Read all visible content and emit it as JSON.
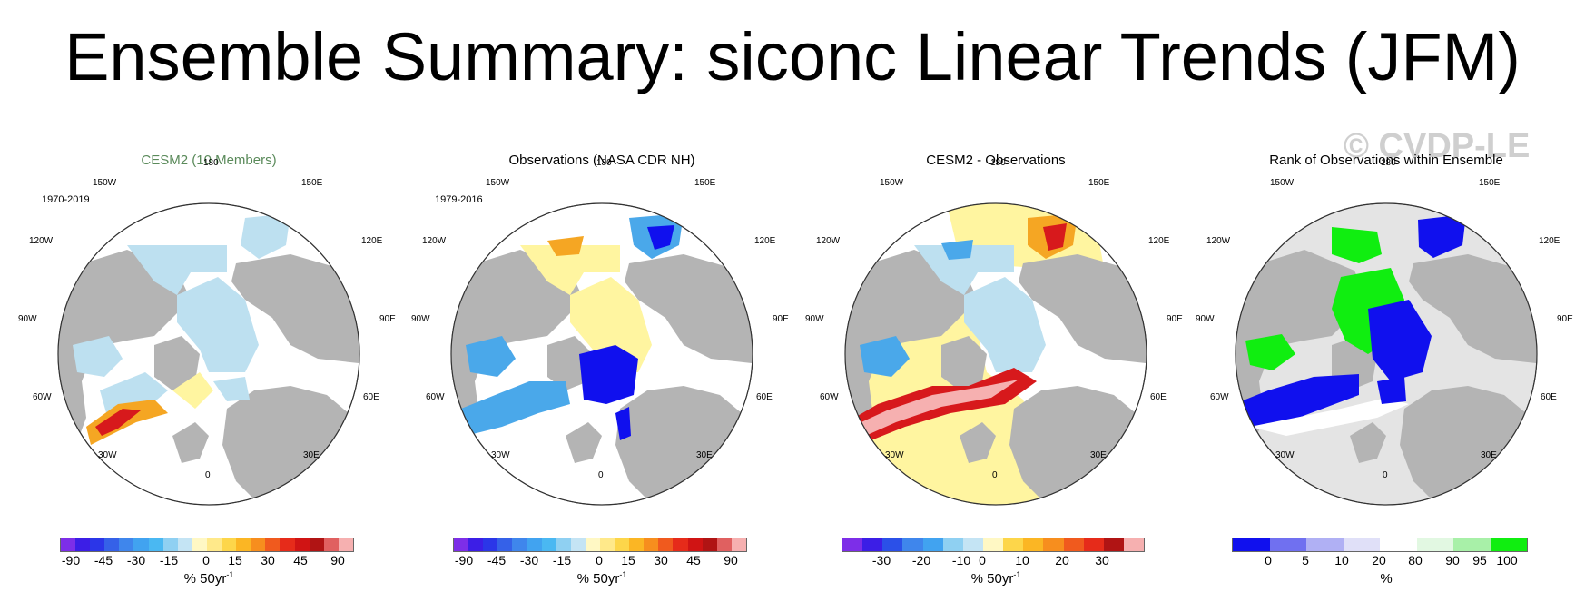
{
  "title": "Ensemble Summary: siconc Linear Trends (JFM)",
  "watermark": "© CVDP-LE",
  "colors": {
    "land": "#b4b4b4",
    "ocean": "#ffffff",
    "lightblue": "#bde0f0",
    "midblue": "#4aa8ea",
    "yellow": "#fff5a0",
    "orange": "#f5a623",
    "red": "#d7191c",
    "darkred": "#a50f15",
    "blue": "#1010ee",
    "green": "#10ee10",
    "lightgrey": "#e4e4e4"
  },
  "lon_labels": {
    "top": "180",
    "tl": "150W",
    "tr": "150E",
    "ul": "120W",
    "ur": "120E",
    "ml": "90W",
    "mr": "90E",
    "ll": "60W",
    "lr": "60E",
    "bl": "30W",
    "br": "30E",
    "bottom": "0"
  },
  "panels": [
    {
      "title": "CESM2 (10 Members)",
      "period": "1970-2019",
      "units": "% 50yr",
      "unit_exp": "-1",
      "colorbar_ticks": [
        "-90",
        "-45",
        "-30",
        "-15",
        "0",
        "15",
        "30",
        "45",
        "90"
      ]
    },
    {
      "title": "Observations (NASA CDR NH)",
      "period": "1979-2016",
      "units": "% 50yr",
      "unit_exp": "-1",
      "colorbar_ticks": [
        "-90",
        "-45",
        "-30",
        "-15",
        "0",
        "15",
        "30",
        "45",
        "90"
      ]
    },
    {
      "title": "CESM2 - Observations",
      "period": "",
      "units": "% 50yr",
      "unit_exp": "-1",
      "colorbar_ticks": [
        "-30",
        "-20",
        "-10",
        "0",
        "10",
        "20",
        "30"
      ]
    },
    {
      "title": "Rank of Observations within Ensemble",
      "period": "",
      "units": "%",
      "unit_exp": "",
      "colorbar_ticks": [
        "0",
        "5",
        "10",
        "20",
        "80",
        "90",
        "95",
        "100"
      ]
    }
  ]
}
